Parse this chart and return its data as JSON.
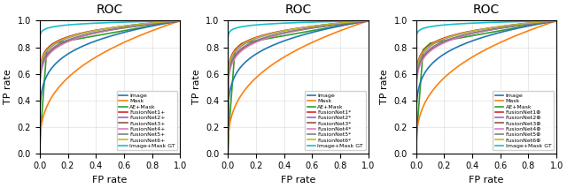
{
  "title": "ROC",
  "xlabel": "FP rate",
  "ylabel": "TP rate",
  "legend_labels_1": [
    "Image",
    "Mask",
    "AE+Mask",
    "FusionNet1+",
    "FusionNet2+",
    "FusionNet3+",
    "FusionNet4+",
    "FusionNet5+",
    "FusionNet6+",
    "Image+Mask GT"
  ],
  "legend_labels_2": [
    "Image",
    "Mask",
    "AE+Mask",
    "FusionNet1*",
    "FusionNet2*",
    "FusionNet3*",
    "FusionNet4*",
    "FusionNet5*",
    "FusionNet6*",
    "Image+Mask GT"
  ],
  "legend_labels_3": [
    "Image",
    "Mask",
    "AE+Mask",
    "FusionNet1⊕",
    "FusionNet2⊕",
    "FusionNet3⊕",
    "FusionNet4⊕",
    "FusionNet5⊕",
    "FusionNet6⊕",
    "Image+Mask GT"
  ],
  "line_colors": [
    "#1f77b4",
    "#ff7f0e",
    "#2ca02c",
    "#d62728",
    "#9467bd",
    "#8c564b",
    "#e377c2",
    "#7f7f7f",
    "#bcbd22",
    "#17becf"
  ],
  "xticks": [
    0.0,
    0.2,
    0.4,
    0.6,
    0.8,
    1.0
  ],
  "yticks": [
    0.0,
    0.2,
    0.4,
    0.6,
    0.8,
    1.0
  ]
}
